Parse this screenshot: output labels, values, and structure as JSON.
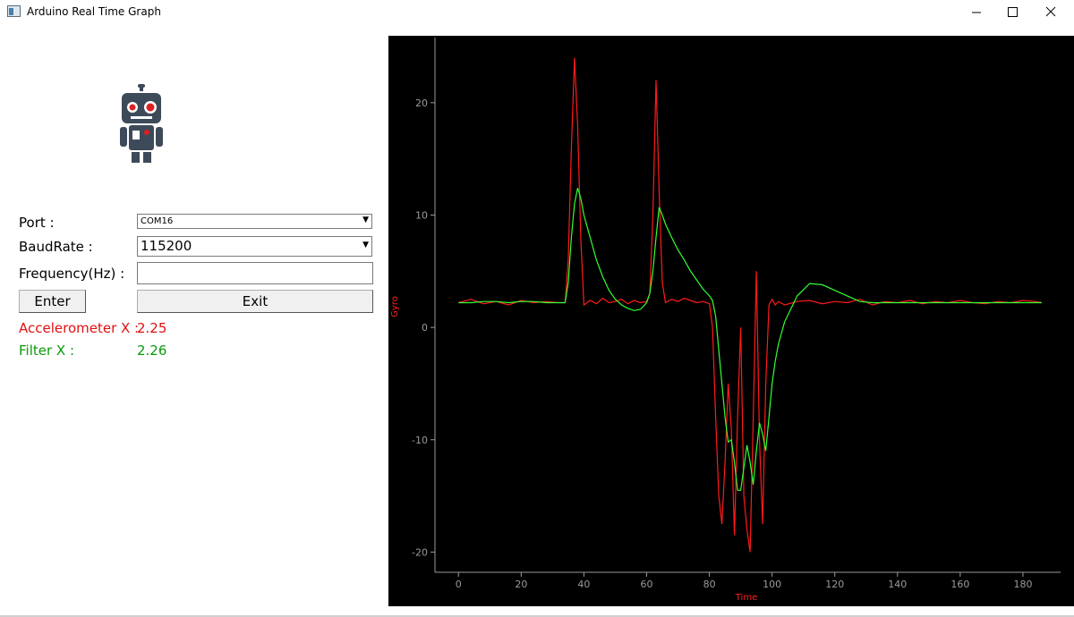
{
  "window": {
    "title": "Arduino Real Time Graph"
  },
  "form": {
    "port_label": "Port :",
    "port_value": "COM16",
    "baud_label": "BaudRate :",
    "baud_value": "115200",
    "freq_label": "Frequency(Hz) :",
    "enter_button": "Enter",
    "exit_button": "Exit",
    "accel_label": "Accelerometer X :",
    "accel_value": 2.25,
    "filter_label": "Filter X :",
    "filter_value": 2.26
  },
  "chart_data": {
    "type": "line",
    "xlabel": "Time",
    "ylabel": "Gyro",
    "x": [
      0,
      4,
      8,
      12,
      16,
      20,
      24,
      28,
      32,
      34,
      35,
      36,
      37,
      38,
      39,
      40,
      42,
      44,
      46,
      48,
      50,
      52,
      54,
      56,
      58,
      60,
      61,
      62,
      63,
      64,
      65,
      66,
      68,
      70,
      72,
      74,
      76,
      78,
      80,
      81,
      82,
      83,
      84,
      85,
      86,
      87,
      88,
      89,
      90,
      91,
      92,
      93,
      94,
      95,
      96,
      97,
      98,
      99,
      100,
      101,
      102,
      104,
      108,
      112,
      116,
      120,
      124,
      128,
      132,
      136,
      140,
      144,
      148,
      152,
      156,
      160,
      164,
      168,
      172,
      176,
      180,
      184,
      186
    ],
    "series": [
      {
        "color": "#ff1a1a",
        "values": [
          2.2,
          2.5,
          2.1,
          2.3,
          2.0,
          2.4,
          2.2,
          2.3,
          2.2,
          2.2,
          6,
          16,
          24,
          18,
          8,
          2.0,
          2.4,
          2.1,
          2.6,
          2.2,
          2.3,
          2.5,
          2.1,
          2.4,
          2.2,
          2.3,
          3,
          10,
          22,
          12,
          4,
          2.2,
          2.5,
          2.3,
          2.6,
          2.4,
          2.2,
          2.3,
          2.1,
          0,
          -8,
          -15,
          -17.5,
          -12,
          -5,
          -9,
          -18.5,
          -8,
          0,
          -15,
          -18,
          -20,
          -8,
          5,
          -10,
          -17.5,
          -5,
          2,
          2.5,
          2,
          2.3,
          2.0,
          2.3,
          2.4,
          2.1,
          2.3,
          2.2,
          2.5,
          2.0,
          2.3,
          2.2,
          2.4,
          2.1,
          2.3,
          2.2,
          2.4,
          2.2,
          2.1,
          2.3,
          2.2,
          2.4,
          2.3,
          2.2
        ]
      },
      {
        "color": "#33ff33",
        "values": [
          2.2,
          2.2,
          2.3,
          2.3,
          2.2,
          2.3,
          2.3,
          2.2,
          2.2,
          2.2,
          4,
          8,
          11,
          12.4,
          11.5,
          10,
          8,
          6,
          4.5,
          3.3,
          2.5,
          2,
          1.7,
          1.5,
          1.6,
          2.2,
          3,
          5,
          8,
          10.7,
          10,
          9.2,
          8,
          6.9,
          6,
          5,
          4.2,
          3.4,
          2.8,
          2.4,
          1,
          -2,
          -5,
          -8,
          -10.2,
          -10,
          -12,
          -14.5,
          -14.5,
          -12.5,
          -10.5,
          -12,
          -14,
          -11,
          -8.5,
          -9.5,
          -11,
          -8,
          -5,
          -3,
          -1.5,
          0.5,
          2.8,
          3.9,
          3.8,
          3.3,
          2.8,
          2.3,
          2.2,
          2.2,
          2.2,
          2.2,
          2.2,
          2.2,
          2.2,
          2.2,
          2.2,
          2.2,
          2.2,
          2.2,
          2.2,
          2.2,
          2.2
        ]
      }
    ],
    "xlim": [
      -7.5,
      192
    ],
    "ylim": [
      -21.8,
      25.8
    ],
    "xticks": [
      0,
      20,
      40,
      60,
      80,
      100,
      120,
      140,
      160,
      180
    ],
    "yticks": [
      -20,
      -10,
      0,
      10,
      20
    ],
    "axis_color": "#9a9a9a",
    "label_color": "#ff2020"
  }
}
